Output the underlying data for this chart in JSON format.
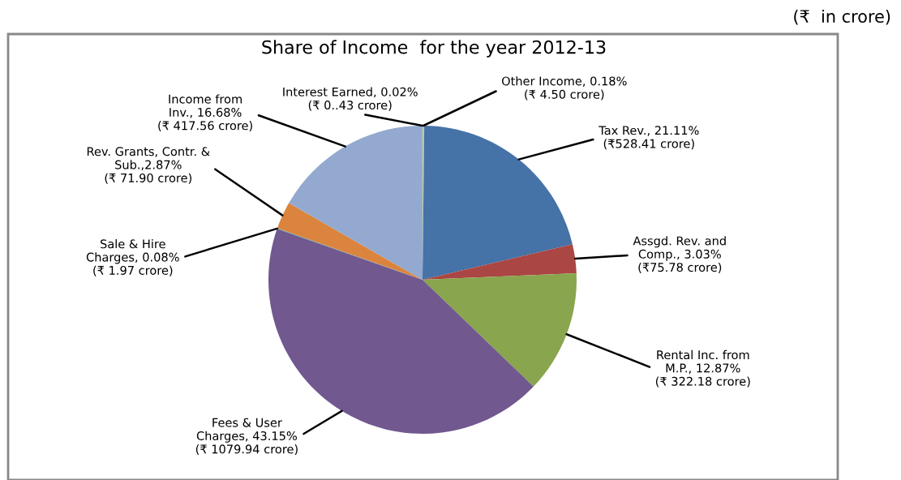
{
  "chart_data": {
    "type": "pie",
    "title": "Share of Income  for the year 2012-13",
    "annotations": [
      "(₹  in crore)"
    ],
    "categories": [
      "Other Income, 0.18%",
      "Tax Rev., 21.11%",
      "Assgd. Rev. and\nComp., 3.03%",
      "Rental Inc. from\nM.P., 12.87%",
      "Fees & User\nCharges, 43.15%",
      "Sale & Hire\nCharges, 0.08%",
      "Rev. Grants, Contr. &\nSub.,2.87%",
      "Income from\nInv., 16.68%",
      "Interest Earned, 0.02%"
    ],
    "values": [
      4.5,
      528.41,
      75.78,
      322.18,
      1079.94,
      1.97,
      71.9,
      417.56,
      0.43
    ],
    "value_labels": [
      "(₹ 4.50 crore)",
      "(₹528.41 crore)",
      "(₹75.78 crore)",
      "(₹ 322.18 crore)",
      "(₹ 1079.94 crore)",
      "(₹ 1.97 crore)",
      "(₹ 71.90 crore)",
      "(₹ 417.56 crore)",
      "(₹ 0..43 crore)"
    ],
    "colors": [
      "#b9cd96",
      "#4572a7",
      "#aa4643",
      "#89a54e",
      "#71588f",
      "#4198af",
      "#db843d",
      "#93a9cf",
      "#a99bbd"
    ],
    "legend": false
  }
}
